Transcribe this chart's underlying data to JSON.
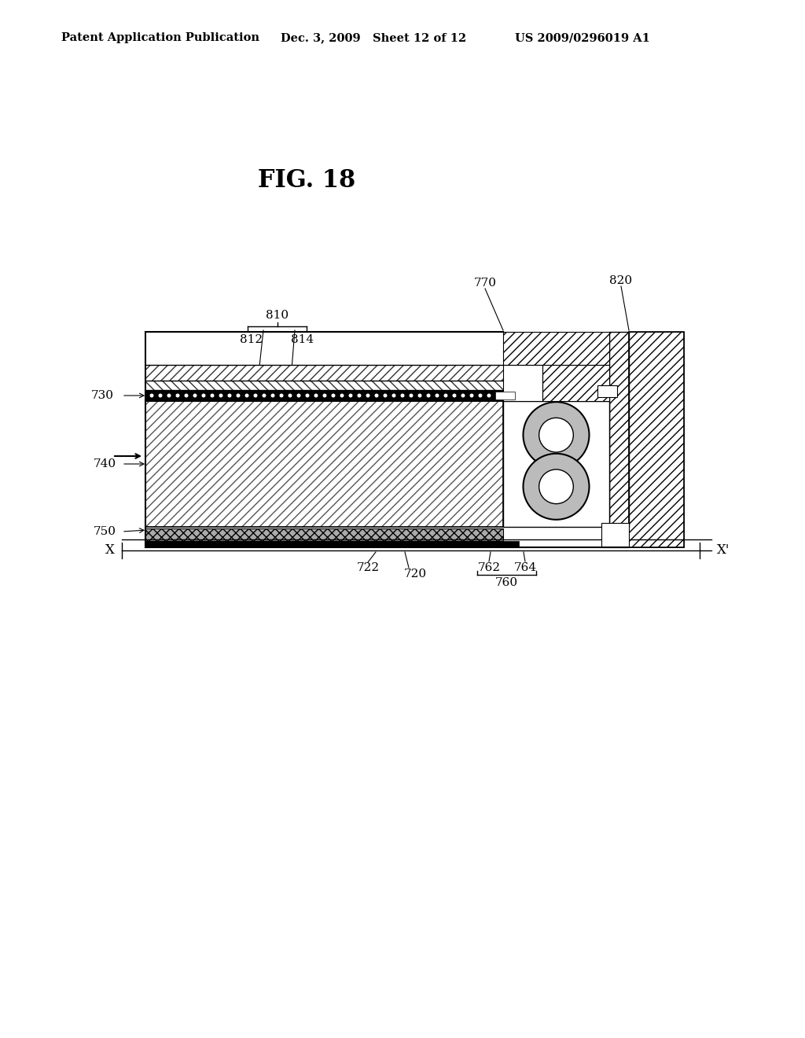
{
  "title": "FIG. 18",
  "header_left": "Patent Application Publication",
  "header_center": "Dec. 3, 2009   Sheet 12 of 12",
  "header_right": "US 2009/0296019 A1",
  "bg_color": "#ffffff",
  "label_fontsize": 11,
  "header_fontsize": 10.5,
  "title_fontsize": 22
}
